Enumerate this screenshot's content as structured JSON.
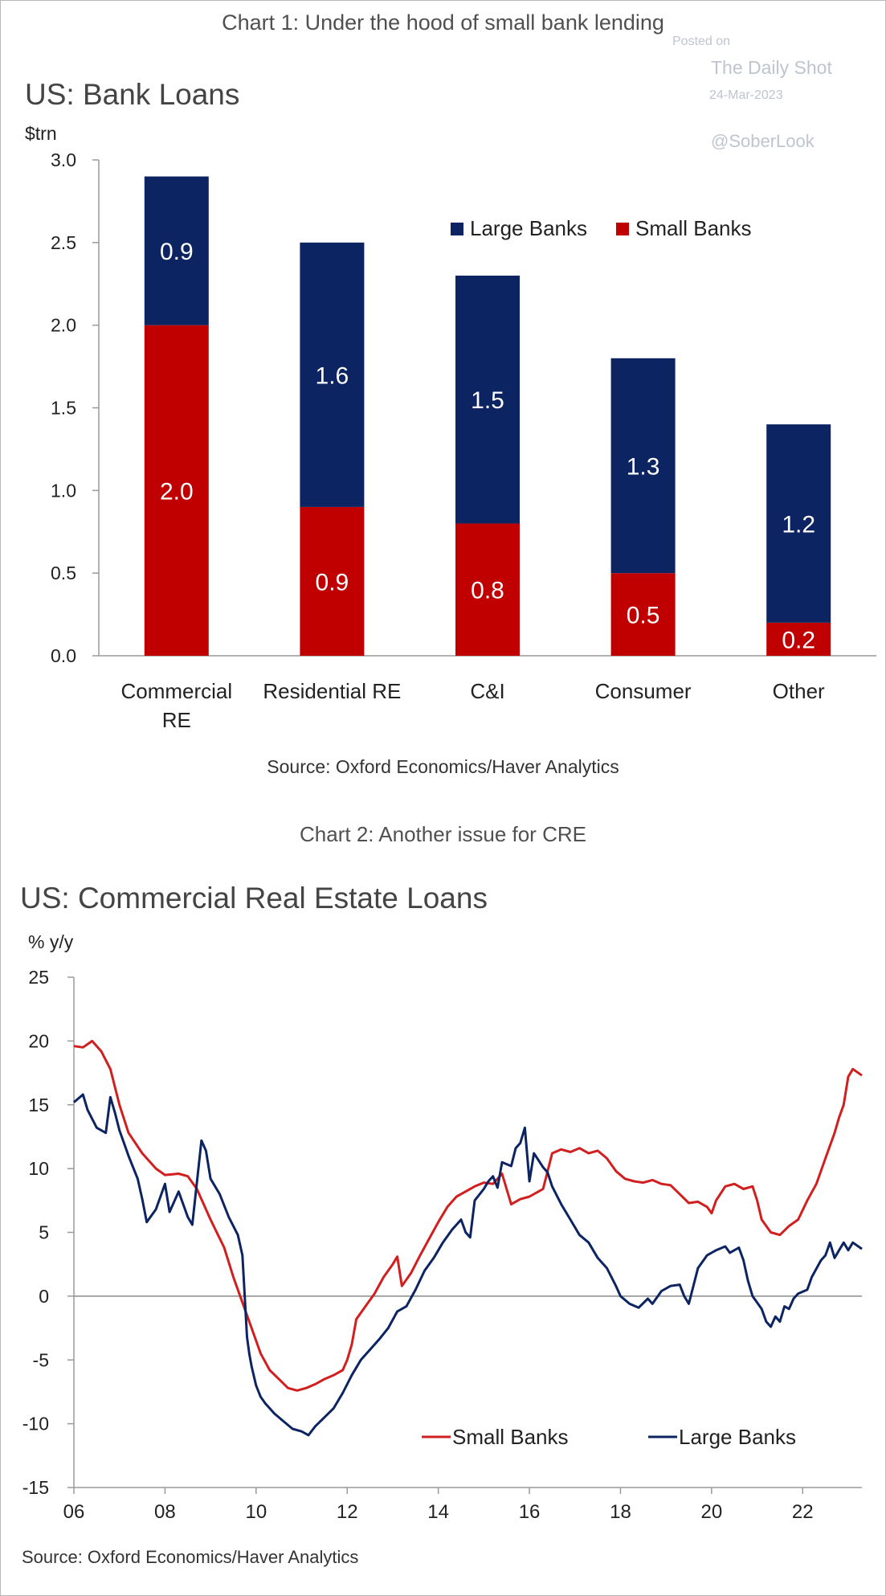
{
  "watermark": {
    "posted_on": "Posted on",
    "site": "The Daily Shot",
    "date": "24-Mar-2023",
    "handle": "@SoberLook"
  },
  "chart1": {
    "heading": "Chart 1: Under the hood of small bank lending",
    "source": "Source: Oxford Economics/Haver Analytics",
    "colors": {
      "large": "#0c2461",
      "small": "#c00000"
    }
  },
  "chart2": {
    "heading": "Chart 2: Another issue for CRE",
    "source": "Source: Oxford Economics/Haver Analytics",
    "colors": {
      "small": "#d11f1f",
      "large": "#0c2461"
    }
  },
  "chart_data": [
    {
      "type": "bar",
      "stacked": true,
      "title": "US: Bank Loans",
      "ylabel": "$trn",
      "xlabel": "",
      "categories": [
        "Commercial RE",
        "Residential RE",
        "C&I",
        "Consumer",
        "Other"
      ],
      "category_lines": [
        [
          "Commercial",
          "RE"
        ],
        [
          "Residential RE"
        ],
        [
          "C&I"
        ],
        [
          "Consumer"
        ],
        [
          "Other"
        ]
      ],
      "series": [
        {
          "name": "Small Banks",
          "values": [
            2.0,
            0.9,
            0.8,
            0.5,
            0.2
          ],
          "labels": [
            "2.0",
            "0.9",
            "0.8",
            "0.5",
            "0.2"
          ]
        },
        {
          "name": "Large Banks",
          "values": [
            0.9,
            1.6,
            1.5,
            1.3,
            1.2
          ],
          "labels": [
            "0.9",
            "1.6",
            "1.5",
            "1.3",
            "1.2"
          ]
        }
      ],
      "ylim": [
        0,
        3.0
      ],
      "yticks": [
        "0.0",
        "0.5",
        "1.0",
        "1.5",
        "2.0",
        "2.5",
        "3.0"
      ],
      "legend": [
        "Large Banks",
        "Small Banks"
      ],
      "legend_position": "top-right",
      "grid": false
    },
    {
      "type": "line",
      "title": "US: Commercial Real Estate Loans",
      "ylabel": "% y/y",
      "xlabel": "",
      "xlim": [
        2006,
        2023.3
      ],
      "ylim": [
        -15,
        25
      ],
      "yticks": [
        "25",
        "20",
        "15",
        "10",
        "5",
        "0",
        "-5",
        "-10",
        "-15"
      ],
      "xticks": [
        "06",
        "08",
        "10",
        "12",
        "14",
        "16",
        "18",
        "20",
        "22"
      ],
      "legend_position": "bottom-right",
      "grid": false,
      "series": [
        {
          "name": "Small Banks",
          "points": [
            [
              2006.0,
              19.6
            ],
            [
              2006.2,
              19.5
            ],
            [
              2006.4,
              20.0
            ],
            [
              2006.6,
              19.2
            ],
            [
              2006.8,
              17.8
            ],
            [
              2007.0,
              15.0
            ],
            [
              2007.2,
              12.8
            ],
            [
              2007.5,
              11.2
            ],
            [
              2007.8,
              10.0
            ],
            [
              2008.0,
              9.5
            ],
            [
              2008.3,
              9.6
            ],
            [
              2008.5,
              9.4
            ],
            [
              2008.7,
              8.4
            ],
            [
              2009.0,
              6.0
            ],
            [
              2009.3,
              3.8
            ],
            [
              2009.5,
              1.5
            ],
            [
              2009.7,
              -0.5
            ],
            [
              2009.9,
              -2.5
            ],
            [
              2010.1,
              -4.5
            ],
            [
              2010.3,
              -5.8
            ],
            [
              2010.5,
              -6.5
            ],
            [
              2010.7,
              -7.2
            ],
            [
              2010.9,
              -7.4
            ],
            [
              2011.1,
              -7.2
            ],
            [
              2011.3,
              -6.9
            ],
            [
              2011.5,
              -6.5
            ],
            [
              2011.7,
              -6.2
            ],
            [
              2011.9,
              -5.8
            ],
            [
              2012.0,
              -5.0
            ],
            [
              2012.1,
              -3.8
            ],
            [
              2012.2,
              -1.8
            ],
            [
              2012.4,
              -0.8
            ],
            [
              2012.6,
              0.2
            ],
            [
              2012.8,
              1.5
            ],
            [
              2013.0,
              2.5
            ],
            [
              2013.1,
              3.1
            ],
            [
              2013.2,
              0.8
            ],
            [
              2013.4,
              1.8
            ],
            [
              2013.6,
              3.2
            ],
            [
              2013.8,
              4.5
            ],
            [
              2014.0,
              5.8
            ],
            [
              2014.2,
              7.0
            ],
            [
              2014.4,
              7.8
            ],
            [
              2014.6,
              8.2
            ],
            [
              2014.8,
              8.6
            ],
            [
              2015.0,
              8.9
            ],
            [
              2015.2,
              8.8
            ],
            [
              2015.4,
              9.6
            ],
            [
              2015.5,
              8.4
            ],
            [
              2015.6,
              7.2
            ],
            [
              2015.8,
              7.6
            ],
            [
              2016.0,
              7.8
            ],
            [
              2016.2,
              8.2
            ],
            [
              2016.3,
              8.4
            ],
            [
              2016.5,
              11.2
            ],
            [
              2016.7,
              11.5
            ],
            [
              2016.9,
              11.3
            ],
            [
              2017.1,
              11.6
            ],
            [
              2017.3,
              11.2
            ],
            [
              2017.5,
              11.4
            ],
            [
              2017.7,
              10.8
            ],
            [
              2017.9,
              9.8
            ],
            [
              2018.1,
              9.2
            ],
            [
              2018.3,
              9.0
            ],
            [
              2018.5,
              8.9
            ],
            [
              2018.7,
              9.1
            ],
            [
              2018.9,
              8.8
            ],
            [
              2019.1,
              8.7
            ],
            [
              2019.3,
              8.0
            ],
            [
              2019.5,
              7.3
            ],
            [
              2019.7,
              7.4
            ],
            [
              2019.9,
              7.0
            ],
            [
              2020.0,
              6.5
            ],
            [
              2020.1,
              7.5
            ],
            [
              2020.3,
              8.6
            ],
            [
              2020.5,
              8.8
            ],
            [
              2020.7,
              8.4
            ],
            [
              2020.9,
              8.6
            ],
            [
              2021.0,
              7.5
            ],
            [
              2021.1,
              6.0
            ],
            [
              2021.3,
              5.0
            ],
            [
              2021.5,
              4.8
            ],
            [
              2021.7,
              5.5
            ],
            [
              2021.9,
              6.0
            ],
            [
              2022.1,
              7.5
            ],
            [
              2022.3,
              8.8
            ],
            [
              2022.5,
              10.8
            ],
            [
              2022.7,
              12.8
            ],
            [
              2022.8,
              14.0
            ],
            [
              2022.9,
              15.0
            ],
            [
              2023.0,
              17.2
            ],
            [
              2023.1,
              17.8
            ],
            [
              2023.3,
              17.3
            ]
          ]
        },
        {
          "name": "Large Banks",
          "points": [
            [
              2006.0,
              15.2
            ],
            [
              2006.2,
              15.8
            ],
            [
              2006.3,
              14.6
            ],
            [
              2006.5,
              13.2
            ],
            [
              2006.7,
              12.8
            ],
            [
              2006.8,
              15.6
            ],
            [
              2006.9,
              14.4
            ],
            [
              2007.0,
              13.0
            ],
            [
              2007.2,
              11.0
            ],
            [
              2007.4,
              9.2
            ],
            [
              2007.5,
              7.6
            ],
            [
              2007.6,
              5.8
            ],
            [
              2007.8,
              6.8
            ],
            [
              2008.0,
              8.8
            ],
            [
              2008.1,
              6.6
            ],
            [
              2008.3,
              8.2
            ],
            [
              2008.5,
              6.2
            ],
            [
              2008.6,
              5.6
            ],
            [
              2008.8,
              12.2
            ],
            [
              2008.9,
              11.4
            ],
            [
              2009.0,
              9.2
            ],
            [
              2009.2,
              8.0
            ],
            [
              2009.4,
              6.2
            ],
            [
              2009.6,
              4.8
            ],
            [
              2009.7,
              3.2
            ],
            [
              2009.8,
              -3.2
            ],
            [
              2009.85,
              -4.5
            ],
            [
              2009.9,
              -5.5
            ],
            [
              2010.0,
              -7.0
            ],
            [
              2010.1,
              -7.9
            ],
            [
              2010.2,
              -8.4
            ],
            [
              2010.4,
              -9.2
            ],
            [
              2010.6,
              -9.8
            ],
            [
              2010.8,
              -10.4
            ],
            [
              2011.0,
              -10.6
            ],
            [
              2011.15,
              -10.9
            ],
            [
              2011.3,
              -10.2
            ],
            [
              2011.5,
              -9.5
            ],
            [
              2011.7,
              -8.8
            ],
            [
              2011.9,
              -7.6
            ],
            [
              2012.1,
              -6.2
            ],
            [
              2012.3,
              -5.0
            ],
            [
              2012.5,
              -4.2
            ],
            [
              2012.7,
              -3.4
            ],
            [
              2012.9,
              -2.5
            ],
            [
              2013.1,
              -1.2
            ],
            [
              2013.3,
              -0.8
            ],
            [
              2013.5,
              0.5
            ],
            [
              2013.7,
              2.0
            ],
            [
              2013.9,
              3.0
            ],
            [
              2014.1,
              4.2
            ],
            [
              2014.3,
              5.2
            ],
            [
              2014.5,
              6.0
            ],
            [
              2014.6,
              5.0
            ],
            [
              2014.7,
              4.6
            ],
            [
              2014.8,
              7.5
            ],
            [
              2015.0,
              8.4
            ],
            [
              2015.1,
              9.0
            ],
            [
              2015.2,
              9.4
            ],
            [
              2015.3,
              8.5
            ],
            [
              2015.4,
              10.5
            ],
            [
              2015.6,
              10.2
            ],
            [
              2015.7,
              11.6
            ],
            [
              2015.8,
              12.0
            ],
            [
              2015.9,
              13.2
            ],
            [
              2016.0,
              9.0
            ],
            [
              2016.1,
              11.2
            ],
            [
              2016.3,
              10.1
            ],
            [
              2016.4,
              9.7
            ],
            [
              2016.5,
              8.6
            ],
            [
              2016.7,
              7.2
            ],
            [
              2016.9,
              6.0
            ],
            [
              2017.1,
              4.8
            ],
            [
              2017.3,
              4.2
            ],
            [
              2017.5,
              3.0
            ],
            [
              2017.7,
              2.2
            ],
            [
              2017.9,
              0.8
            ],
            [
              2018.0,
              0.0
            ],
            [
              2018.2,
              -0.6
            ],
            [
              2018.4,
              -0.9
            ],
            [
              2018.6,
              -0.2
            ],
            [
              2018.7,
              -0.6
            ],
            [
              2018.9,
              0.4
            ],
            [
              2019.1,
              0.8
            ],
            [
              2019.3,
              0.9
            ],
            [
              2019.4,
              0.0
            ],
            [
              2019.5,
              -0.6
            ],
            [
              2019.6,
              0.8
            ],
            [
              2019.7,
              2.2
            ],
            [
              2019.9,
              3.2
            ],
            [
              2020.1,
              3.6
            ],
            [
              2020.3,
              3.9
            ],
            [
              2020.4,
              3.4
            ],
            [
              2020.6,
              3.8
            ],
            [
              2020.7,
              2.8
            ],
            [
              2020.8,
              1.2
            ],
            [
              2020.9,
              0.0
            ],
            [
              2021.1,
              -1.0
            ],
            [
              2021.2,
              -2.0
            ],
            [
              2021.3,
              -2.4
            ],
            [
              2021.4,
              -1.6
            ],
            [
              2021.5,
              -2.0
            ],
            [
              2021.6,
              -0.8
            ],
            [
              2021.7,
              -1.0
            ],
            [
              2021.8,
              -0.2
            ],
            [
              2021.9,
              0.2
            ],
            [
              2022.1,
              0.5
            ],
            [
              2022.2,
              1.5
            ],
            [
              2022.4,
              2.8
            ],
            [
              2022.5,
              3.2
            ],
            [
              2022.6,
              4.2
            ],
            [
              2022.7,
              3.0
            ],
            [
              2022.8,
              3.6
            ],
            [
              2022.9,
              4.2
            ],
            [
              2023.0,
              3.6
            ],
            [
              2023.1,
              4.2
            ],
            [
              2023.3,
              3.7
            ]
          ]
        }
      ]
    }
  ]
}
